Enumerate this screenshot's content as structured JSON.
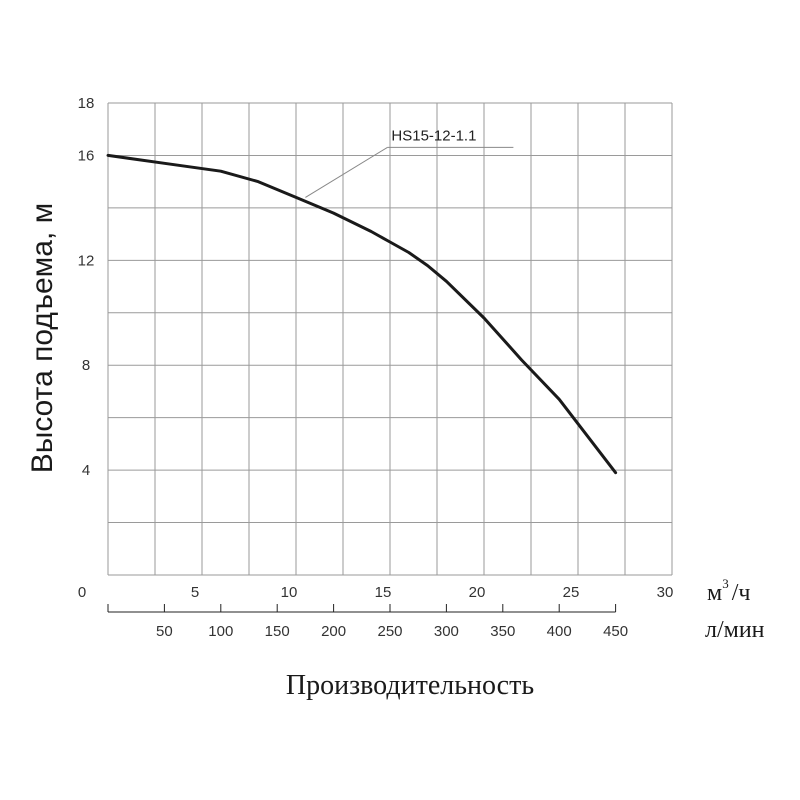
{
  "chart_data": {
    "type": "line",
    "ylabel": "Высота подъема, м",
    "xlabel": "Производительность",
    "x_unit_primary": "м",
    "x_unit_primary_sup": "3",
    "x_unit_primary_tail": "/ч",
    "x_unit_secondary": "л/мин",
    "ylim": [
      0,
      18
    ],
    "xlim": [
      0,
      30
    ],
    "y_ticks": [
      "4",
      "8",
      "12",
      "16",
      "18"
    ],
    "y_origin_label": "0",
    "x_ticks_primary": [
      "5",
      "10",
      "15",
      "20",
      "25",
      "30"
    ],
    "x_ticks_secondary": [
      "50",
      "100",
      "150",
      "200",
      "250",
      "300",
      "350",
      "400",
      "450"
    ],
    "grid": true,
    "series": [
      {
        "name": "HS15-12-1.1",
        "color": "#1a1a1a",
        "x": [
          0,
          3,
          6,
          8,
          10,
          12,
          14,
          15,
          16,
          17,
          18,
          20,
          22,
          24,
          27
        ],
        "y": [
          16,
          15.7,
          15.4,
          15.0,
          14.4,
          13.8,
          13.1,
          12.7,
          12.3,
          11.8,
          11.2,
          9.8,
          8.2,
          6.7,
          3.9
        ]
      }
    ],
    "annotation": {
      "label": "HS15-12-1.1",
      "at_x": 10.5,
      "at_y": 14.4
    }
  }
}
